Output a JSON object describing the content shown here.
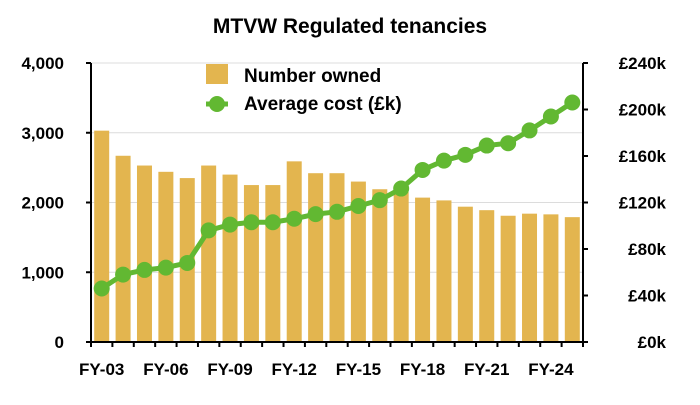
{
  "chart_data": {
    "type": "bar+line",
    "title": "MTVW Regulated tenancies",
    "categories": [
      "FY-03",
      "FY-04",
      "FY-05",
      "FY-06",
      "FY-07",
      "FY-08",
      "FY-09",
      "FY-10",
      "FY-11",
      "FY-12",
      "FY-13",
      "FY-14",
      "FY-15",
      "FY-16",
      "FY-17",
      "FY-18",
      "FY-19",
      "FY-20",
      "FY-21",
      "FY-22",
      "FY-23",
      "FY-24",
      "FY-25"
    ],
    "x_tick_labels": [
      "FY-03",
      "FY-06",
      "FY-09",
      "FY-12",
      "FY-15",
      "FY-18",
      "FY-21",
      "FY-24"
    ],
    "series": [
      {
        "name": "Number owned",
        "type": "bar",
        "axis": "left",
        "color": "#E3B54F",
        "values": [
          3030,
          2670,
          2530,
          2440,
          2350,
          2530,
          2400,
          2250,
          2250,
          2590,
          2420,
          2420,
          2300,
          2190,
          2150,
          2070,
          2030,
          1940,
          1890,
          1810,
          1840,
          1830,
          1790
        ]
      },
      {
        "name": "Average cost (£k)",
        "type": "line",
        "axis": "right",
        "color": "#62B832",
        "values": [
          46,
          58,
          62,
          64,
          68,
          96,
          101,
          103,
          103,
          106,
          110,
          112,
          117,
          122,
          132,
          148,
          156,
          161,
          169,
          171,
          182,
          194,
          206
        ]
      }
    ],
    "ylim_left": [
      0,
      4000
    ],
    "yticks_left": [
      "0",
      "1,000",
      "2,000",
      "3,000",
      "4,000"
    ],
    "ylim_right": [
      0,
      240
    ],
    "yticks_right": [
      "£0k",
      "£40k",
      "£80k",
      "£120k",
      "£160k",
      "£200k",
      "£240k"
    ],
    "grid": true,
    "legend_position": "top-center"
  }
}
